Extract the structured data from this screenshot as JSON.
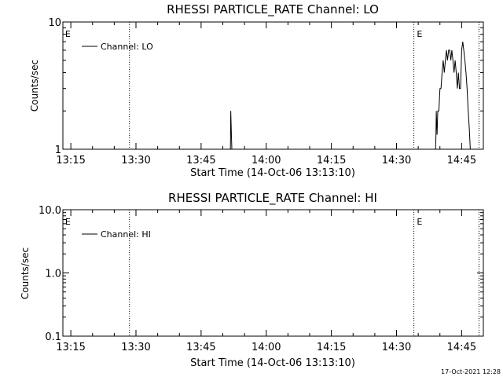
{
  "chart_data": [
    {
      "type": "line",
      "title": "RHESSI PARTICLE_RATE Channel: LO",
      "xlabel": "Start Time (14-Oct-06 13:13:10)",
      "ylabel": "Counts/sec",
      "yscale": "log",
      "ylim": [
        1,
        10
      ],
      "xlim": [
        "13:13:10",
        "14:50:00"
      ],
      "xticks": [
        "13:15",
        "13:30",
        "13:45",
        "14:00",
        "14:15",
        "14:30",
        "14:45"
      ],
      "yticks": [
        "1",
        "10"
      ],
      "legend": {
        "entries": [
          "Channel: LO"
        ],
        "position": "top-left"
      },
      "grid": false,
      "vlines": [
        "13:28:30",
        "14:34:00",
        "14:49:00"
      ],
      "markers": [
        {
          "label": "E",
          "x": "13:13:30"
        },
        {
          "label": "E",
          "x": "14:34:30"
        }
      ],
      "series": [
        {
          "name": "Channel: LO",
          "x": [
            "13:51:30",
            "13:51:45",
            "13:51:50",
            "13:52:00",
            "13:52:05",
            "13:52:15",
            "13:52:30",
            "14:39:00",
            "14:39:05",
            "14:39:10",
            "14:39:20",
            "14:39:30",
            "14:39:45",
            "14:40:00",
            "14:40:15",
            "14:40:30",
            "14:40:45",
            "14:41:00",
            "14:41:15",
            "14:41:30",
            "14:41:45",
            "14:42:00",
            "14:42:15",
            "14:42:30",
            "14:42:45",
            "14:43:00",
            "14:43:15",
            "14:43:30",
            "14:43:45",
            "14:44:00",
            "14:44:15",
            "14:44:30",
            "14:44:45",
            "14:45:00",
            "14:45:15",
            "14:45:30",
            "14:45:45",
            "14:46:00",
            "14:46:15",
            "14:46:30",
            "14:46:45",
            "14:47:00",
            "14:47:15",
            "14:47:30",
            "14:47:45",
            "14:48:00",
            "14:48:05"
          ],
          "y": [
            1,
            1,
            2,
            1.2,
            1,
            1,
            1,
            1,
            1.3,
            2,
            1.3,
            2,
            2,
            3,
            3,
            4,
            5,
            4,
            5,
            6,
            5,
            6,
            6,
            5,
            6,
            5,
            4,
            5,
            4,
            3,
            4,
            3,
            3,
            6,
            7,
            6,
            5,
            4,
            3,
            2,
            1.5,
            1,
            1,
            1,
            1,
            1,
            1
          ]
        }
      ]
    },
    {
      "type": "line",
      "title": "RHESSI PARTICLE_RATE Channel: HI",
      "xlabel": "Start Time (14-Oct-06 13:13:10)",
      "ylabel": "Counts/sec",
      "yscale": "log",
      "ylim": [
        0.1,
        10
      ],
      "xlim": [
        "13:13:10",
        "14:50:00"
      ],
      "xticks": [
        "13:15",
        "13:30",
        "13:45",
        "14:00",
        "14:15",
        "14:30",
        "14:45"
      ],
      "yticks": [
        "0.1",
        "1.0",
        "10.0"
      ],
      "legend": {
        "entries": [
          "Channel: HI"
        ],
        "position": "top-left"
      },
      "grid": false,
      "vlines": [
        "13:28:30",
        "14:34:00",
        "14:49:00"
      ],
      "markers": [
        {
          "label": "E",
          "x": "13:13:30"
        },
        {
          "label": "E",
          "x": "14:34:30"
        }
      ],
      "series": [
        {
          "name": "Channel: HI",
          "x": [],
          "y": []
        }
      ]
    }
  ],
  "timestamp": "17-Oct-2021 12:28"
}
